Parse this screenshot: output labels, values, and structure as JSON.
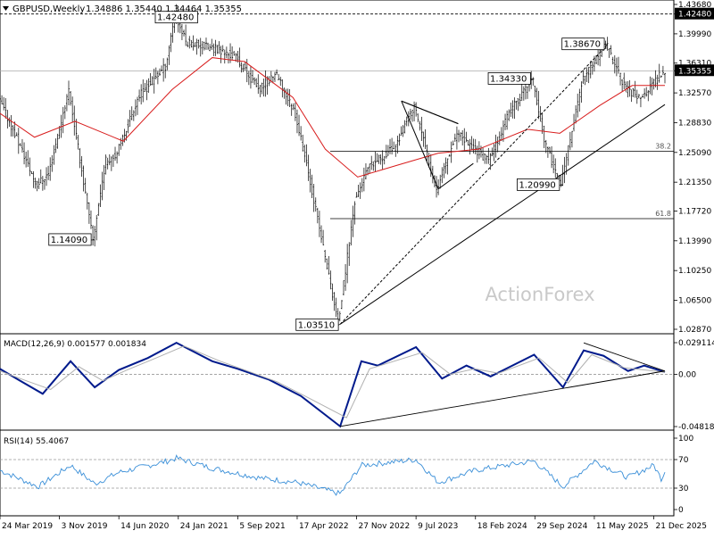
{
  "chart_data": [
    {
      "type": "candlestick",
      "title": "GBPUSD,Weekly",
      "ohlc_text": "1.34886 1.35440 1.34464 1.35355",
      "current_price": "1.35355",
      "y_ticks": [
        "1.43680",
        "1.42480",
        "1.39990",
        "1.36310",
        "1.35355",
        "1.32570",
        "1.28830",
        "1.25090",
        "1.21350",
        "1.17720",
        "1.13990",
        "1.10250",
        "1.06500",
        "1.02870"
      ],
      "ylim": [
        1.0287,
        1.4368
      ],
      "x_ticks": [
        "24 Mar 2019",
        "3 Nov 2019",
        "14 Jun 2020",
        "24 Jan 2021",
        "5 Sep 2021",
        "17 Apr 2022",
        "27 Nov 2022",
        "9 Jul 2023",
        "18 Feb 2024",
        "29 Sep 2024",
        "11 May 2025",
        "21 Dec 2025"
      ],
      "x_tick_dates": [
        "2019-03-24",
        "2019-11-03",
        "2020-06-14",
        "2021-01-24",
        "2021-09-05",
        "2022-04-17",
        "2022-11-27",
        "2023-07-09",
        "2024-02-18",
        "2024-09-29",
        "2025-05-11",
        "2025-12-21"
      ],
      "date_range": [
        "2019-03-24",
        "2026-02-01"
      ],
      "annotations": [
        {
          "label": "1.42480",
          "value": 1.4248,
          "date": "2021-01-17"
        },
        {
          "label": "1.38670",
          "value": 1.3867,
          "date": "2025-07-01"
        },
        {
          "label": "1.34330",
          "value": 1.3433,
          "date": "2024-09-26"
        },
        {
          "label": "1.20990",
          "value": 1.2099,
          "date": "2025-01-13"
        },
        {
          "label": "1.14090",
          "value": 1.1409,
          "date": "2020-03-15"
        },
        {
          "label": "1.03510",
          "value": 1.0351,
          "date": "2022-09-26"
        }
      ],
      "fib_levels": [
        {
          "label": "38.2",
          "value": 1.2522
        },
        {
          "label": "61.8",
          "value": 1.1677
        }
      ],
      "horizontal_lines": [
        1.4248,
        1.3533
      ],
      "moving_average": [
        {
          "date": "2019-03-24",
          "value": 1.3
        },
        {
          "date": "2019-08-01",
          "value": 1.27
        },
        {
          "date": "2020-01-01",
          "value": 1.29
        },
        {
          "date": "2020-07-01",
          "value": 1.265
        },
        {
          "date": "2021-01-01",
          "value": 1.33
        },
        {
          "date": "2021-06-01",
          "value": 1.37
        },
        {
          "date": "2021-10-01",
          "value": 1.365
        },
        {
          "date": "2022-04-01",
          "value": 1.32
        },
        {
          "date": "2022-08-01",
          "value": 1.255
        },
        {
          "date": "2022-12-01",
          "value": 1.22
        },
        {
          "date": "2023-05-01",
          "value": 1.235
        },
        {
          "date": "2023-10-01",
          "value": 1.25
        },
        {
          "date": "2024-03-01",
          "value": 1.255
        },
        {
          "date": "2024-09-01",
          "value": 1.28
        },
        {
          "date": "2025-01-01",
          "value": 1.275
        },
        {
          "date": "2025-06-01",
          "value": 1.31
        },
        {
          "date": "2025-10-01",
          "value": 1.335
        },
        {
          "date": "2026-02-01",
          "value": 1.335
        }
      ],
      "trendlines": [
        {
          "style": "solid",
          "from": {
            "date": "2022-09-26",
            "value": 1.0351
          },
          "to": {
            "date": "2026-02-01",
            "value": 1.311
          }
        },
        {
          "style": "dashed",
          "from": {
            "date": "2022-09-26",
            "value": 1.0351
          },
          "to": {
            "date": "2025-07-01",
            "value": 1.3867
          }
        },
        {
          "style": "solid",
          "from": {
            "date": "2023-05-15",
            "value": 1.3155
          },
          "to": {
            "date": "2023-12-15",
            "value": 1.287
          }
        },
        {
          "style": "solid",
          "from": {
            "date": "2023-05-15",
            "value": 1.3155
          },
          "to": {
            "date": "2023-12-15",
            "value": 1.287
          }
        },
        {
          "style": "solid",
          "from": {
            "date": "2023-05-15",
            "value": 1.3155
          },
          "to": {
            "date": "2023-10-01",
            "value": 1.205
          }
        },
        {
          "style": "solid",
          "from": {
            "date": "2023-10-01",
            "value": 1.205
          },
          "to": {
            "date": "2024-02-10",
            "value": 1.237
          }
        }
      ],
      "price_path": [
        {
          "date": "2019-03-24",
          "value": 1.32
        },
        {
          "date": "2019-06-01",
          "value": 1.27
        },
        {
          "date": "2019-08-15",
          "value": 1.21
        },
        {
          "date": "2019-10-01",
          "value": 1.225
        },
        {
          "date": "2019-12-15",
          "value": 1.33
        },
        {
          "date": "2020-03-15",
          "value": 1.1409
        },
        {
          "date": "2020-05-01",
          "value": 1.24
        },
        {
          "date": "2020-06-14",
          "value": 1.25
        },
        {
          "date": "2020-09-01",
          "value": 1.32
        },
        {
          "date": "2020-12-15",
          "value": 1.36
        },
        {
          "date": "2021-01-17",
          "value": 1.4248
        },
        {
          "date": "2021-03-01",
          "value": 1.39
        },
        {
          "date": "2021-07-01",
          "value": 1.38
        },
        {
          "date": "2021-09-05",
          "value": 1.37
        },
        {
          "date": "2021-12-01",
          "value": 1.33
        },
        {
          "date": "2022-02-01",
          "value": 1.35
        },
        {
          "date": "2022-04-17",
          "value": 1.3
        },
        {
          "date": "2022-06-15",
          "value": 1.21
        },
        {
          "date": "2022-09-26",
          "value": 1.0351
        },
        {
          "date": "2022-11-27",
          "value": 1.19
        },
        {
          "date": "2023-01-15",
          "value": 1.23
        },
        {
          "date": "2023-05-01",
          "value": 1.26
        },
        {
          "date": "2023-07-09",
          "value": 1.31
        },
        {
          "date": "2023-10-01",
          "value": 1.205
        },
        {
          "date": "2023-12-15",
          "value": 1.275
        },
        {
          "date": "2024-04-15",
          "value": 1.24
        },
        {
          "date": "2024-07-01",
          "value": 1.3
        },
        {
          "date": "2024-09-26",
          "value": 1.3433
        },
        {
          "date": "2024-11-15",
          "value": 1.26
        },
        {
          "date": "2025-01-13",
          "value": 1.2099
        },
        {
          "date": "2025-04-01",
          "value": 1.34
        },
        {
          "date": "2025-07-01",
          "value": 1.3867
        },
        {
          "date": "2025-09-15",
          "value": 1.33
        },
        {
          "date": "2025-11-15",
          "value": 1.32
        },
        {
          "date": "2026-02-01",
          "value": 1.3535
        }
      ]
    },
    {
      "type": "line",
      "title": "MACD(12,26,9) 0.001577 0.001834",
      "y_ticks": [
        "0.029114",
        "0.00",
        "-0.048189"
      ],
      "ylim": [
        -0.048189,
        0.029114
      ],
      "series": [
        {
          "name": "",
          "color": "#001a8c",
          "points": [
            {
              "date": "2019-03-24",
              "value": 0.005
            },
            {
              "date": "2019-06-01",
              "value": -0.005
            },
            {
              "date": "2019-09-01",
              "value": -0.018
            },
            {
              "date": "2019-12-15",
              "value": 0.012
            },
            {
              "date": "2020-03-15",
              "value": -0.012
            },
            {
              "date": "2020-06-14",
              "value": 0.004
            },
            {
              "date": "2020-10-01",
              "value": 0.015
            },
            {
              "date": "2021-01-17",
              "value": 0.029
            },
            {
              "date": "2021-06-01",
              "value": 0.012
            },
            {
              "date": "2021-09-05",
              "value": 0.005
            },
            {
              "date": "2022-01-01",
              "value": -0.005
            },
            {
              "date": "2022-05-01",
              "value": -0.02
            },
            {
              "date": "2022-09-26",
              "value": -0.048
            },
            {
              "date": "2022-12-15",
              "value": 0.012
            },
            {
              "date": "2023-02-15",
              "value": 0.008
            },
            {
              "date": "2023-07-09",
              "value": 0.025
            },
            {
              "date": "2023-10-15",
              "value": -0.004
            },
            {
              "date": "2024-01-15",
              "value": 0.008
            },
            {
              "date": "2024-04-15",
              "value": -0.002
            },
            {
              "date": "2024-09-26",
              "value": 0.018
            },
            {
              "date": "2025-01-13",
              "value": -0.012
            },
            {
              "date": "2025-04-01",
              "value": 0.022
            },
            {
              "date": "2025-06-15",
              "value": 0.017
            },
            {
              "date": "2025-09-15",
              "value": 0.003
            },
            {
              "date": "2025-11-15",
              "value": 0.008
            },
            {
              "date": "2026-02-01",
              "value": 0.002
            }
          ]
        },
        {
          "name": "",
          "color": "#b0b0b0",
          "points": [
            {
              "date": "2019-03-24",
              "value": 0.003
            },
            {
              "date": "2019-07-01",
              "value": -0.006
            },
            {
              "date": "2019-10-01",
              "value": -0.014
            },
            {
              "date": "2020-01-15",
              "value": 0.007
            },
            {
              "date": "2020-04-15",
              "value": -0.006
            },
            {
              "date": "2020-07-15",
              "value": 0.004
            },
            {
              "date": "2020-11-01",
              "value": 0.015
            },
            {
              "date": "2021-02-15",
              "value": 0.026
            },
            {
              "date": "2021-07-01",
              "value": 0.012
            },
            {
              "date": "2021-10-01",
              "value": 0.004
            },
            {
              "date": "2022-02-01",
              "value": -0.007
            },
            {
              "date": "2022-06-01",
              "value": -0.022
            },
            {
              "date": "2022-10-20",
              "value": -0.04
            },
            {
              "date": "2023-01-15",
              "value": 0.005
            },
            {
              "date": "2023-08-01",
              "value": 0.02
            },
            {
              "date": "2023-11-15",
              "value": 0.0
            },
            {
              "date": "2024-02-15",
              "value": 0.005
            },
            {
              "date": "2024-05-15",
              "value": 0.001
            },
            {
              "date": "2024-10-15",
              "value": 0.015
            },
            {
              "date": "2025-02-01",
              "value": -0.008
            },
            {
              "date": "2025-05-01",
              "value": 0.018
            },
            {
              "date": "2025-09-01",
              "value": 0.006
            },
            {
              "date": "2026-02-01",
              "value": 0.002
            }
          ]
        }
      ],
      "trendlines": [
        {
          "from": {
            "date": "2022-09-26",
            "value": -0.048
          },
          "to": {
            "date": "2026-02-01",
            "value": 0.003
          }
        },
        {
          "from": {
            "date": "2025-04-01",
            "value": 0.029
          },
          "to": {
            "date": "2026-02-01",
            "value": 0.003
          }
        }
      ]
    },
    {
      "type": "line",
      "title": "RSI(14) 55.4067",
      "y_ticks": [
        "100",
        "70",
        "30",
        "0"
      ],
      "ylim": [
        0,
        100
      ],
      "series": [
        {
          "name": "",
          "color": "#3a8fd8",
          "points": [
            {
              "date": "2019-03-24",
              "value": 55
            },
            {
              "date": "2019-08-15",
              "value": 32
            },
            {
              "date": "2019-12-15",
              "value": 62
            },
            {
              "date": "2020-03-15",
              "value": 36
            },
            {
              "date": "2020-06-14",
              "value": 52
            },
            {
              "date": "2020-12-15",
              "value": 68
            },
            {
              "date": "2021-01-17",
              "value": 72
            },
            {
              "date": "2021-06-01",
              "value": 58
            },
            {
              "date": "2021-12-01",
              "value": 44
            },
            {
              "date": "2022-04-17",
              "value": 38
            },
            {
              "date": "2022-09-26",
              "value": 22
            },
            {
              "date": "2022-12-15",
              "value": 62
            },
            {
              "date": "2023-07-09",
              "value": 70
            },
            {
              "date": "2023-10-01",
              "value": 38
            },
            {
              "date": "2024-02-18",
              "value": 55
            },
            {
              "date": "2024-09-26",
              "value": 68
            },
            {
              "date": "2025-01-13",
              "value": 32
            },
            {
              "date": "2025-05-11",
              "value": 68
            },
            {
              "date": "2025-09-15",
              "value": 45
            },
            {
              "date": "2025-12-21",
              "value": 62
            },
            {
              "date": "2026-01-20",
              "value": 42
            },
            {
              "date": "2026-02-01",
              "value": 55.4
            }
          ]
        }
      ]
    }
  ],
  "watermark": "ActionForex",
  "colors": {
    "candle": "#000000",
    "ma": "#d81c1c",
    "macd": "#001a8c",
    "signal": "#b0b0b0",
    "rsi": "#3a8fd8",
    "grid": "#dddddd",
    "price_tag_bg": "#000000",
    "price_tag_fg": "#ffffff",
    "watermark": "#c9c9c9"
  }
}
